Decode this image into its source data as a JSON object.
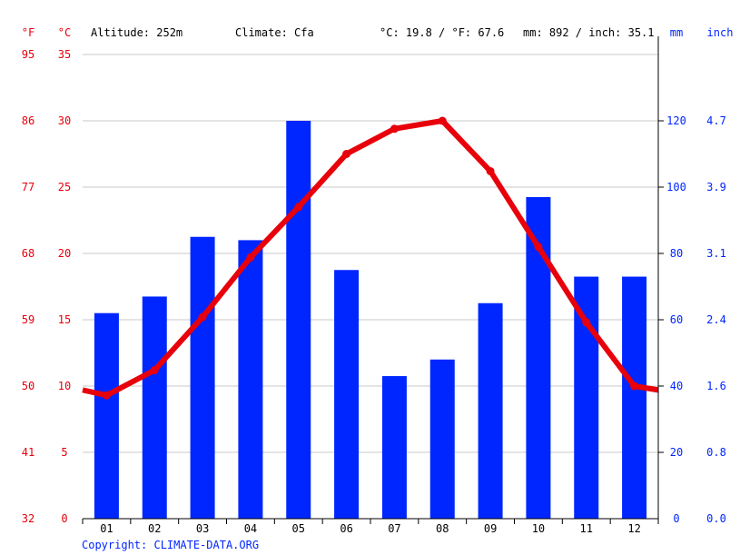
{
  "header": {
    "altitude": "Altitude: 252m",
    "climate": "Climate: Cfa",
    "temp_avg": "°C: 19.8 / °F: 67.6",
    "precip_total": "mm: 892 / inch: 35.1"
  },
  "copyright": "Copyright: CLIMATE-DATA.ORG",
  "colors": {
    "temperature": "#e8000b",
    "precipitation": "#0026ff",
    "grid": "#c8c8c8",
    "axis": "#000000"
  },
  "chart_data": {
    "type": "bar",
    "categories": [
      "01",
      "02",
      "03",
      "04",
      "05",
      "06",
      "07",
      "08",
      "09",
      "10",
      "11",
      "12"
    ],
    "series": [
      {
        "type": "bar",
        "axis": "right",
        "values": [
          62,
          67,
          85,
          84,
          120,
          75,
          43,
          48,
          65,
          97,
          73,
          73
        ]
      },
      {
        "type": "line",
        "axis": "left",
        "values": [
          9.3,
          11.2,
          15.2,
          19.7,
          23.5,
          27.5,
          29.4,
          30.0,
          26.2,
          20.5,
          14.8,
          10.0
        ]
      }
    ],
    "line_edges": {
      "start": 9.7,
      "end": 9.7
    },
    "left_axes": {
      "f_label": "°F",
      "c_label": "°C",
      "f_ticks": [
        "32",
        "41",
        "50",
        "59",
        "68",
        "77",
        "86",
        "95"
      ],
      "c_ticks": [
        "0",
        "5",
        "10",
        "15",
        "20",
        "25",
        "30",
        "35"
      ],
      "ylim_c": [
        0,
        35
      ]
    },
    "right_axes": {
      "mm_label": "mm",
      "inch_label": "inch",
      "mm_ticks": [
        "0",
        "20",
        "40",
        "60",
        "80",
        "100",
        "120"
      ],
      "inch_ticks": [
        "0.0",
        "0.8",
        "1.6",
        "2.4",
        "3.1",
        "3.9",
        "4.7"
      ],
      "ylim_mm": [
        0,
        140
      ]
    },
    "grid": true
  }
}
